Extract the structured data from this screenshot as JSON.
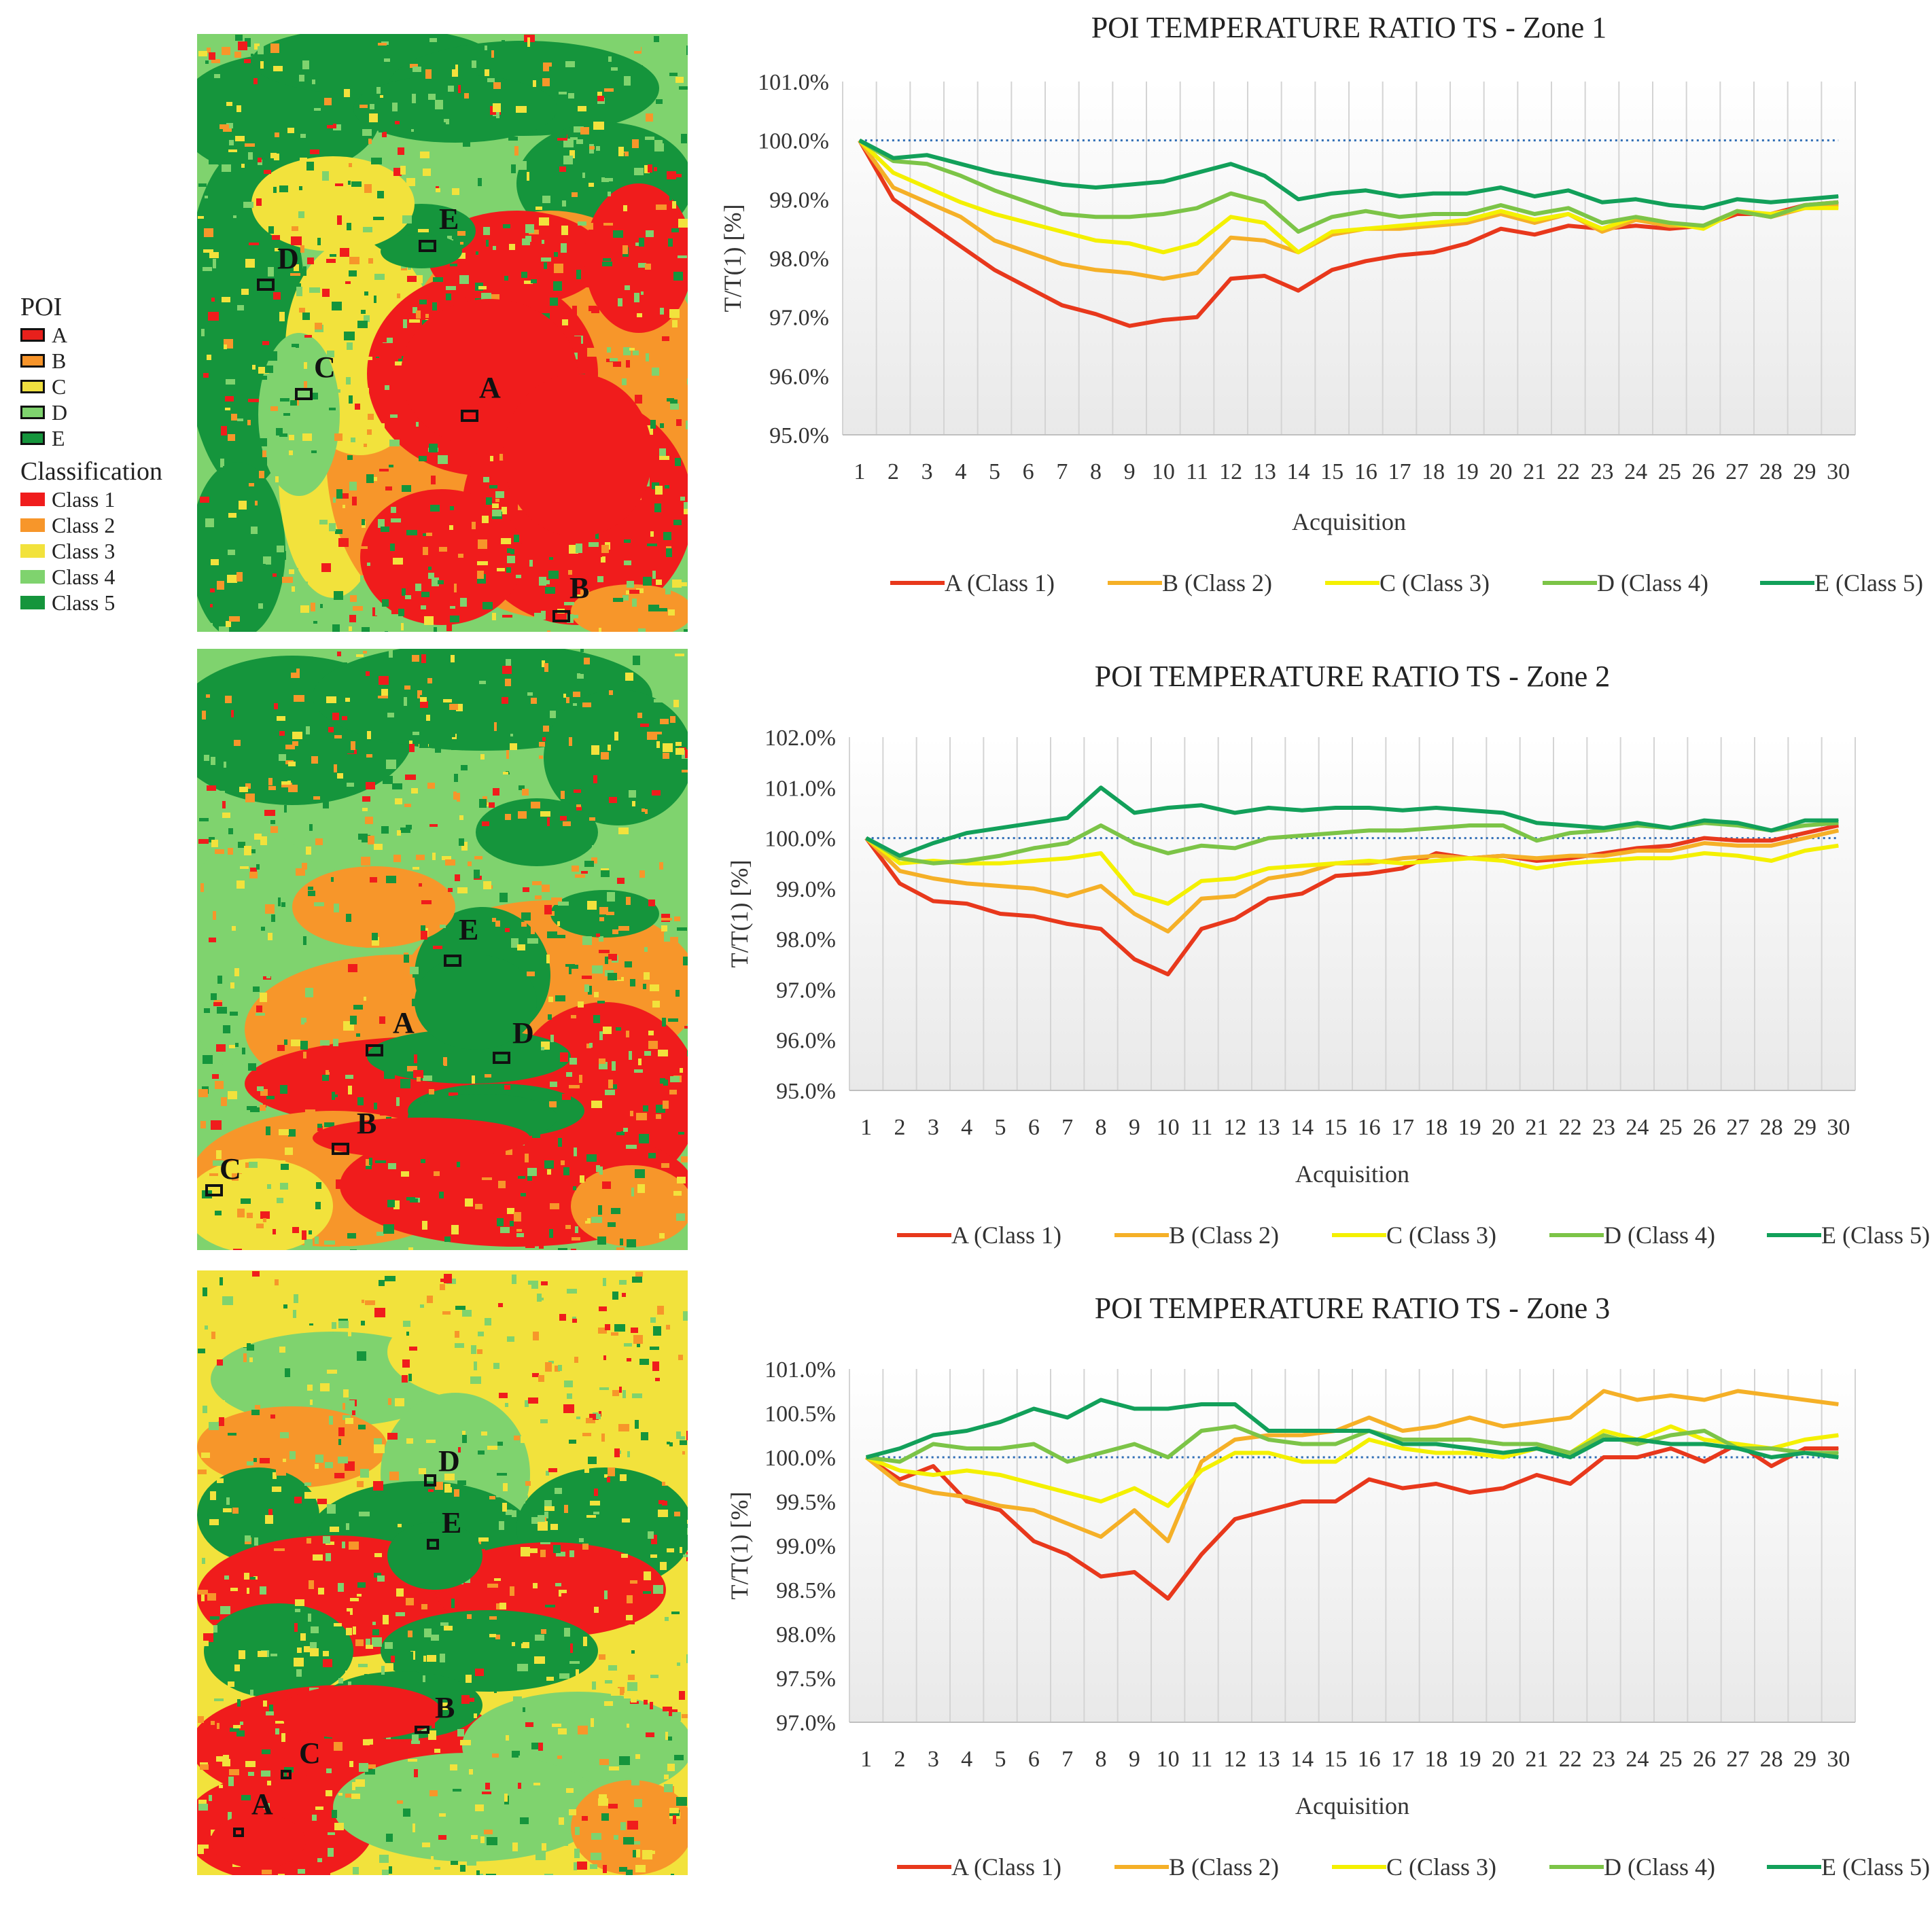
{
  "legend": {
    "poi_title": "POI",
    "poi": [
      {
        "label": "A",
        "color": "#e8201c"
      },
      {
        "label": "B",
        "color": "#f7942a"
      },
      {
        "label": "C",
        "color": "#f0e040"
      },
      {
        "label": "D",
        "color": "#7fd36e"
      },
      {
        "label": "E",
        "color": "#15953c"
      }
    ],
    "class_title": "Classification",
    "classes": [
      {
        "label": "Class 1",
        "color": "#f01c1c"
      },
      {
        "label": "Class 2",
        "color": "#f7962a"
      },
      {
        "label": "Class 3",
        "color": "#f2e23c"
      },
      {
        "label": "Class 4",
        "color": "#7fd36e"
      },
      {
        "label": "Class 5",
        "color": "#15953c"
      }
    ]
  },
  "maps": [
    {
      "name": "zone-1-map",
      "poi_labels": [
        "A",
        "B",
        "C",
        "D",
        "E"
      ]
    },
    {
      "name": "zone-2-map",
      "poi_labels": [
        "A",
        "B",
        "C",
        "D",
        "E"
      ]
    },
    {
      "name": "zone-3-map",
      "poi_labels": [
        "A",
        "B",
        "C",
        "D",
        "E"
      ]
    }
  ],
  "chart_data": [
    {
      "type": "line",
      "title": "POI TEMPERATURE RATIO TS - Zone 1",
      "xlabel": "Acquisition",
      "ylabel": "T/T(1) [%]",
      "ylim": [
        95.0,
        101.0
      ],
      "yticks": [
        "95.0%",
        "96.0%",
        "97.0%",
        "98.0%",
        "99.0%",
        "100.0%",
        "101.0%"
      ],
      "ytick_values": [
        95,
        96,
        97,
        98,
        99,
        100,
        101
      ],
      "reference_line": 100.0,
      "categories": [
        "1",
        "2",
        "3",
        "4",
        "5",
        "6",
        "7",
        "8",
        "9",
        "10",
        "11",
        "12",
        "13",
        "14",
        "15",
        "16",
        "17",
        "18",
        "19",
        "20",
        "21",
        "22",
        "23",
        "24",
        "25",
        "26",
        "27",
        "28",
        "29",
        "30"
      ],
      "series": [
        {
          "name": "A (Class 1)",
          "color": "#e8381c",
          "values": [
            100.0,
            99.0,
            98.6,
            98.2,
            97.8,
            97.5,
            97.2,
            97.05,
            96.85,
            96.95,
            97.0,
            97.65,
            97.7,
            97.45,
            97.8,
            97.95,
            98.05,
            98.1,
            98.25,
            98.5,
            98.4,
            98.55,
            98.5,
            98.55,
            98.5,
            98.55,
            98.75,
            98.75,
            98.9,
            98.95
          ]
        },
        {
          "name": "B (Class 2)",
          "color": "#f5b027",
          "values": [
            100.0,
            99.2,
            98.95,
            98.7,
            98.3,
            98.1,
            97.9,
            97.8,
            97.75,
            97.65,
            97.75,
            98.35,
            98.3,
            98.1,
            98.4,
            98.5,
            98.5,
            98.55,
            98.6,
            98.75,
            98.6,
            98.75,
            98.45,
            98.65,
            98.55,
            98.55,
            98.8,
            98.7,
            98.85,
            98.9
          ]
        },
        {
          "name": "C (Class 3)",
          "color": "#f4f000",
          "values": [
            100.0,
            99.45,
            99.2,
            98.95,
            98.75,
            98.6,
            98.45,
            98.3,
            98.25,
            98.1,
            98.25,
            98.7,
            98.6,
            98.1,
            98.45,
            98.5,
            98.55,
            98.6,
            98.65,
            98.8,
            98.65,
            98.75,
            98.5,
            98.7,
            98.6,
            98.5,
            98.8,
            98.75,
            98.85,
            98.85
          ]
        },
        {
          "name": "D (Class 4)",
          "color": "#7cc447",
          "values": [
            100.0,
            99.65,
            99.6,
            99.4,
            99.15,
            98.95,
            98.75,
            98.7,
            98.7,
            98.75,
            98.85,
            99.1,
            98.95,
            98.45,
            98.7,
            98.8,
            98.7,
            98.75,
            98.75,
            98.9,
            98.75,
            98.85,
            98.6,
            98.7,
            98.6,
            98.55,
            98.8,
            98.7,
            98.9,
            98.95
          ]
        },
        {
          "name": "E (Class 5)",
          "color": "#12a05a",
          "values": [
            100.0,
            99.7,
            99.75,
            99.6,
            99.45,
            99.35,
            99.25,
            99.2,
            99.25,
            99.3,
            99.45,
            99.6,
            99.4,
            99.0,
            99.1,
            99.15,
            99.05,
            99.1,
            99.1,
            99.2,
            99.05,
            99.15,
            98.95,
            99.0,
            98.9,
            98.85,
            99.0,
            98.95,
            99.0,
            99.05
          ]
        }
      ]
    },
    {
      "type": "line",
      "title": "POI TEMPERATURE RATIO TS - Zone 2",
      "xlabel": "Acquisition",
      "ylabel": "T/T(1) [%]",
      "ylim": [
        95.0,
        102.0
      ],
      "yticks": [
        "95.0%",
        "96.0%",
        "97.0%",
        "98.0%",
        "99.0%",
        "100.0%",
        "101.0%",
        "102.0%"
      ],
      "ytick_values": [
        95,
        96,
        97,
        98,
        99,
        100,
        101,
        102
      ],
      "reference_line": 100.0,
      "categories": [
        "1",
        "2",
        "3",
        "4",
        "5",
        "6",
        "7",
        "8",
        "9",
        "10",
        "11",
        "12",
        "13",
        "14",
        "15",
        "16",
        "17",
        "18",
        "19",
        "20",
        "21",
        "22",
        "23",
        "24",
        "25",
        "26",
        "27",
        "28",
        "29",
        "30"
      ],
      "series": [
        {
          "name": "A (Class 1)",
          "color": "#e8381c",
          "values": [
            100.0,
            99.1,
            98.75,
            98.7,
            98.5,
            98.45,
            98.3,
            98.2,
            97.6,
            97.3,
            98.2,
            98.4,
            98.8,
            98.9,
            99.25,
            99.3,
            99.4,
            99.7,
            99.6,
            99.65,
            99.55,
            99.6,
            99.7,
            99.8,
            99.85,
            100.0,
            99.95,
            99.95,
            100.1,
            100.25
          ]
        },
        {
          "name": "B (Class 2)",
          "color": "#f5b027",
          "values": [
            100.0,
            99.35,
            99.2,
            99.1,
            99.05,
            99.0,
            98.85,
            99.05,
            98.5,
            98.15,
            98.8,
            98.85,
            99.2,
            99.3,
            99.5,
            99.5,
            99.6,
            99.65,
            99.6,
            99.65,
            99.6,
            99.65,
            99.65,
            99.75,
            99.75,
            99.9,
            99.85,
            99.85,
            100.0,
            100.15
          ]
        },
        {
          "name": "C (Class 3)",
          "color": "#f4f000",
          "values": [
            100.0,
            99.5,
            99.55,
            99.5,
            99.5,
            99.55,
            99.6,
            99.7,
            98.9,
            98.7,
            99.15,
            99.2,
            99.4,
            99.45,
            99.5,
            99.55,
            99.5,
            99.55,
            99.6,
            99.55,
            99.4,
            99.5,
            99.55,
            99.6,
            99.6,
            99.7,
            99.65,
            99.55,
            99.75,
            99.85
          ]
        },
        {
          "name": "D (Class 4)",
          "color": "#7cc447",
          "values": [
            100.0,
            99.6,
            99.5,
            99.55,
            99.65,
            99.8,
            99.9,
            100.25,
            99.9,
            99.7,
            99.85,
            99.8,
            100.0,
            100.05,
            100.1,
            100.15,
            100.15,
            100.2,
            100.25,
            100.25,
            99.95,
            100.1,
            100.15,
            100.25,
            100.2,
            100.3,
            100.25,
            100.15,
            100.25,
            100.3
          ]
        },
        {
          "name": "E (Class 5)",
          "color": "#12a05a",
          "values": [
            100.0,
            99.65,
            99.9,
            100.1,
            100.2,
            100.3,
            100.4,
            101.0,
            100.5,
            100.6,
            100.65,
            100.5,
            100.6,
            100.55,
            100.6,
            100.6,
            100.55,
            100.6,
            100.55,
            100.5,
            100.3,
            100.25,
            100.2,
            100.3,
            100.2,
            100.35,
            100.3,
            100.15,
            100.35,
            100.35
          ]
        }
      ]
    },
    {
      "type": "line",
      "title": "POI TEMPERATURE RATIO TS - Zone 3",
      "xlabel": "Acquisition",
      "ylabel": "T/T(1) [%]",
      "ylim": [
        97.0,
        101.0
      ],
      "yticks": [
        "97.0%",
        "97.5%",
        "98.0%",
        "98.5%",
        "99.0%",
        "99.5%",
        "100.0%",
        "100.5%",
        "101.0%"
      ],
      "ytick_values": [
        97.0,
        97.5,
        98.0,
        98.5,
        99.0,
        99.5,
        100.0,
        100.5,
        101.0
      ],
      "reference_line": 100.0,
      "categories": [
        "1",
        "2",
        "3",
        "4",
        "5",
        "6",
        "7",
        "8",
        "9",
        "10",
        "11",
        "12",
        "13",
        "14",
        "15",
        "16",
        "17",
        "18",
        "19",
        "20",
        "21",
        "22",
        "23",
        "24",
        "25",
        "26",
        "27",
        "28",
        "29",
        "30"
      ],
      "series": [
        {
          "name": "A (Class 1)",
          "color": "#e8381c",
          "values": [
            100.0,
            99.75,
            99.9,
            99.5,
            99.4,
            99.05,
            98.9,
            98.65,
            98.7,
            98.4,
            98.9,
            99.3,
            99.4,
            99.5,
            99.5,
            99.75,
            99.65,
            99.7,
            99.6,
            99.65,
            99.8,
            99.7,
            100.0,
            100.0,
            100.1,
            99.95,
            100.15,
            99.9,
            100.1,
            100.1
          ]
        },
        {
          "name": "B (Class 2)",
          "color": "#f5b027",
          "values": [
            100.0,
            99.7,
            99.6,
            99.55,
            99.45,
            99.4,
            99.25,
            99.1,
            99.4,
            99.05,
            99.95,
            100.2,
            100.25,
            100.25,
            100.3,
            100.45,
            100.3,
            100.35,
            100.45,
            100.35,
            100.4,
            100.45,
            100.75,
            100.65,
            100.7,
            100.65,
            100.75,
            100.7,
            100.65,
            100.6
          ]
        },
        {
          "name": "C (Class 3)",
          "color": "#f4f000",
          "values": [
            100.0,
            99.85,
            99.8,
            99.85,
            99.8,
            99.7,
            99.6,
            99.5,
            99.65,
            99.45,
            99.85,
            100.05,
            100.05,
            99.95,
            99.95,
            100.2,
            100.1,
            100.05,
            100.05,
            100.0,
            100.1,
            100.05,
            100.3,
            100.2,
            100.35,
            100.2,
            100.15,
            100.1,
            100.2,
            100.25
          ]
        },
        {
          "name": "D (Class 4)",
          "color": "#7cc447",
          "values": [
            100.0,
            99.95,
            100.15,
            100.1,
            100.1,
            100.15,
            99.95,
            100.05,
            100.15,
            100.0,
            100.3,
            100.35,
            100.2,
            100.15,
            100.15,
            100.3,
            100.2,
            100.2,
            100.2,
            100.15,
            100.15,
            100.05,
            100.25,
            100.15,
            100.25,
            100.3,
            100.1,
            100.1,
            100.05,
            100.05
          ]
        },
        {
          "name": "E (Class 5)",
          "color": "#12a05a",
          "values": [
            100.0,
            100.1,
            100.25,
            100.3,
            100.4,
            100.55,
            100.45,
            100.65,
            100.55,
            100.55,
            100.6,
            100.6,
            100.3,
            100.3,
            100.3,
            100.3,
            100.15,
            100.15,
            100.1,
            100.05,
            100.1,
            100.0,
            100.2,
            100.2,
            100.15,
            100.15,
            100.1,
            100.0,
            100.05,
            100.0
          ]
        }
      ]
    }
  ]
}
